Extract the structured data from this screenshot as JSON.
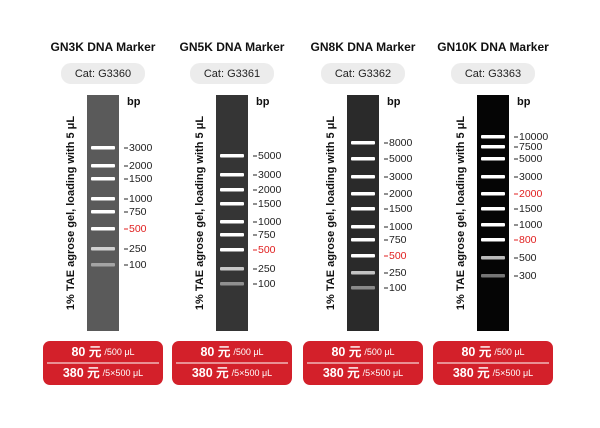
{
  "panels": [
    {
      "title": "GN3K DNA Marker",
      "cat": "Cat: G3360",
      "unit": "bp",
      "note": "1% TAE agrose gel, loading with 5 μL",
      "gel_color": "#5a5a5a",
      "bands": [
        {
          "label": "3000",
          "color": "#222222"
        },
        {
          "label": "2000",
          "color": "#222222"
        },
        {
          "label": "1500",
          "color": "#222222"
        },
        {
          "label": "1000",
          "color": "#222222"
        },
        {
          "label": "750",
          "color": "#222222"
        },
        {
          "label": "500",
          "color": "#e02020"
        },
        {
          "label": "250",
          "color": "#222222"
        },
        {
          "label": "100",
          "color": "#222222"
        }
      ],
      "prices": [
        {
          "amount": "80 元",
          "unit": "/500 μL"
        },
        {
          "amount": "380 元",
          "unit": "/5×500 μL"
        }
      ]
    },
    {
      "title": "GN5K DNA Marker",
      "cat": "Cat: G3361",
      "unit": "bp",
      "note": "1% TAE agrose gel, loading with 5 μL",
      "gel_color": "#353535",
      "bands": [
        {
          "label": "5000",
          "color": "#222222"
        },
        {
          "label": "3000",
          "color": "#222222"
        },
        {
          "label": "2000",
          "color": "#222222"
        },
        {
          "label": "1500",
          "color": "#222222"
        },
        {
          "label": "1000",
          "color": "#222222"
        },
        {
          "label": "750",
          "color": "#222222"
        },
        {
          "label": "500",
          "color": "#e02020"
        },
        {
          "label": "250",
          "color": "#222222"
        },
        {
          "label": "100",
          "color": "#222222"
        }
      ],
      "prices": [
        {
          "amount": "80 元",
          "unit": "/500 μL"
        },
        {
          "amount": "380 元",
          "unit": "/5×500 μL"
        }
      ]
    },
    {
      "title": "GN8K DNA Marker",
      "cat": "Cat: G3362",
      "unit": "bp",
      "note": "1% TAE agrose gel, loading with 5 μL",
      "gel_color": "#2a2a2a",
      "bands": [
        {
          "label": "8000",
          "color": "#222222"
        },
        {
          "label": "5000",
          "color": "#222222"
        },
        {
          "label": "3000",
          "color": "#222222"
        },
        {
          "label": "2000",
          "color": "#222222"
        },
        {
          "label": "1500",
          "color": "#222222"
        },
        {
          "label": "1000",
          "color": "#222222"
        },
        {
          "label": "750",
          "color": "#222222"
        },
        {
          "label": "500",
          "color": "#e02020"
        },
        {
          "label": "250",
          "color": "#222222"
        },
        {
          "label": "100",
          "color": "#222222"
        }
      ],
      "prices": [
        {
          "amount": "80 元",
          "unit": "/500 μL"
        },
        {
          "amount": "380 元",
          "unit": "/5×500 μL"
        }
      ]
    },
    {
      "title": "GN10K DNA Marker",
      "cat": "Cat: G3363",
      "unit": "bp",
      "note": "1% TAE agrose gel, loading with 5 μL",
      "gel_color": "#050505",
      "bands": [
        {
          "label": "10000",
          "color": "#222222"
        },
        {
          "label": "7500",
          "color": "#222222"
        },
        {
          "label": "5000",
          "color": "#222222"
        },
        {
          "label": "3000",
          "color": "#222222"
        },
        {
          "label": "2000",
          "color": "#e02020"
        },
        {
          "label": "1500",
          "color": "#222222"
        },
        {
          "label": "1000",
          "color": "#222222"
        },
        {
          "label": "800",
          "color": "#e02020"
        },
        {
          "label": "500",
          "color": "#222222"
        },
        {
          "label": "300",
          "color": "#222222"
        }
      ],
      "prices": [
        {
          "amount": "80 元",
          "unit": "/500 μL"
        },
        {
          "amount": "380 元",
          "unit": "/5×500 μL"
        }
      ]
    }
  ]
}
